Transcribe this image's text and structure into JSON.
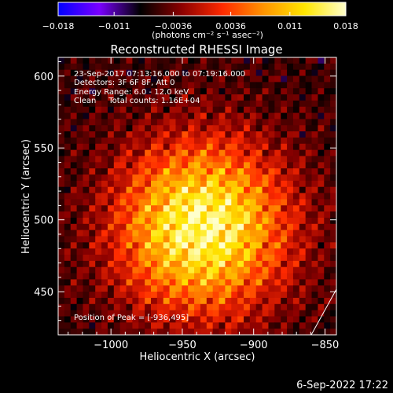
{
  "chart_data": {
    "type": "heatmap",
    "title": "Reconstructed RHESSI Image",
    "xlabel": "Heliocentric X (arcsec)",
    "ylabel": "Heliocentric Y (arcsec)",
    "xlim": [
      -1037,
      -842
    ],
    "ylim": [
      420,
      613
    ],
    "xticks": [
      {
        "value": -1000,
        "label": "−1000"
      },
      {
        "value": -950,
        "label": "−950"
      },
      {
        "value": -900,
        "label": "−900"
      },
      {
        "value": -850,
        "label": "−850"
      }
    ],
    "yticks": [
      {
        "value": 450,
        "label": "450"
      },
      {
        "value": 500,
        "label": "500"
      },
      {
        "value": 550,
        "label": "550"
      },
      {
        "value": 600,
        "label": "600"
      }
    ],
    "peak": [
      -936,
      495
    ],
    "grid_cells": 45,
    "annotations": [
      "23-Sep-2017 07:13:16.000 to 07:19:16.000",
      "Detectors: 3F 6F 8F, Att 0",
      "Energy Range: 6.0 - 12.0 keV",
      "Clean     Total counts: 1.16E+04"
    ],
    "peak_label": "Position of Peak = [-936,495]",
    "colorbar": {
      "min": -0.018,
      "max": 0.018,
      "ticks": [
        {
          "value": -0.018,
          "label": "−0.018"
        },
        {
          "value": -0.011,
          "label": "−0.011"
        },
        {
          "value": -0.0036,
          "label": "−0.0036"
        },
        {
          "value": 0.0036,
          "label": "0.0036"
        },
        {
          "value": 0.011,
          "label": "0.011"
        },
        {
          "value": 0.018,
          "label": "0.018"
        }
      ],
      "units": "(photons cm⁻² s⁻¹ asec⁻²)",
      "colors": [
        "#0000ff",
        "#7a00ff",
        "#000000",
        "#8b0000",
        "#ff2a00",
        "#ff9400",
        "#ffe600",
        "#ffffcc"
      ]
    }
  },
  "footer": {
    "timestamp": "6-Sep-2022 17:22"
  }
}
